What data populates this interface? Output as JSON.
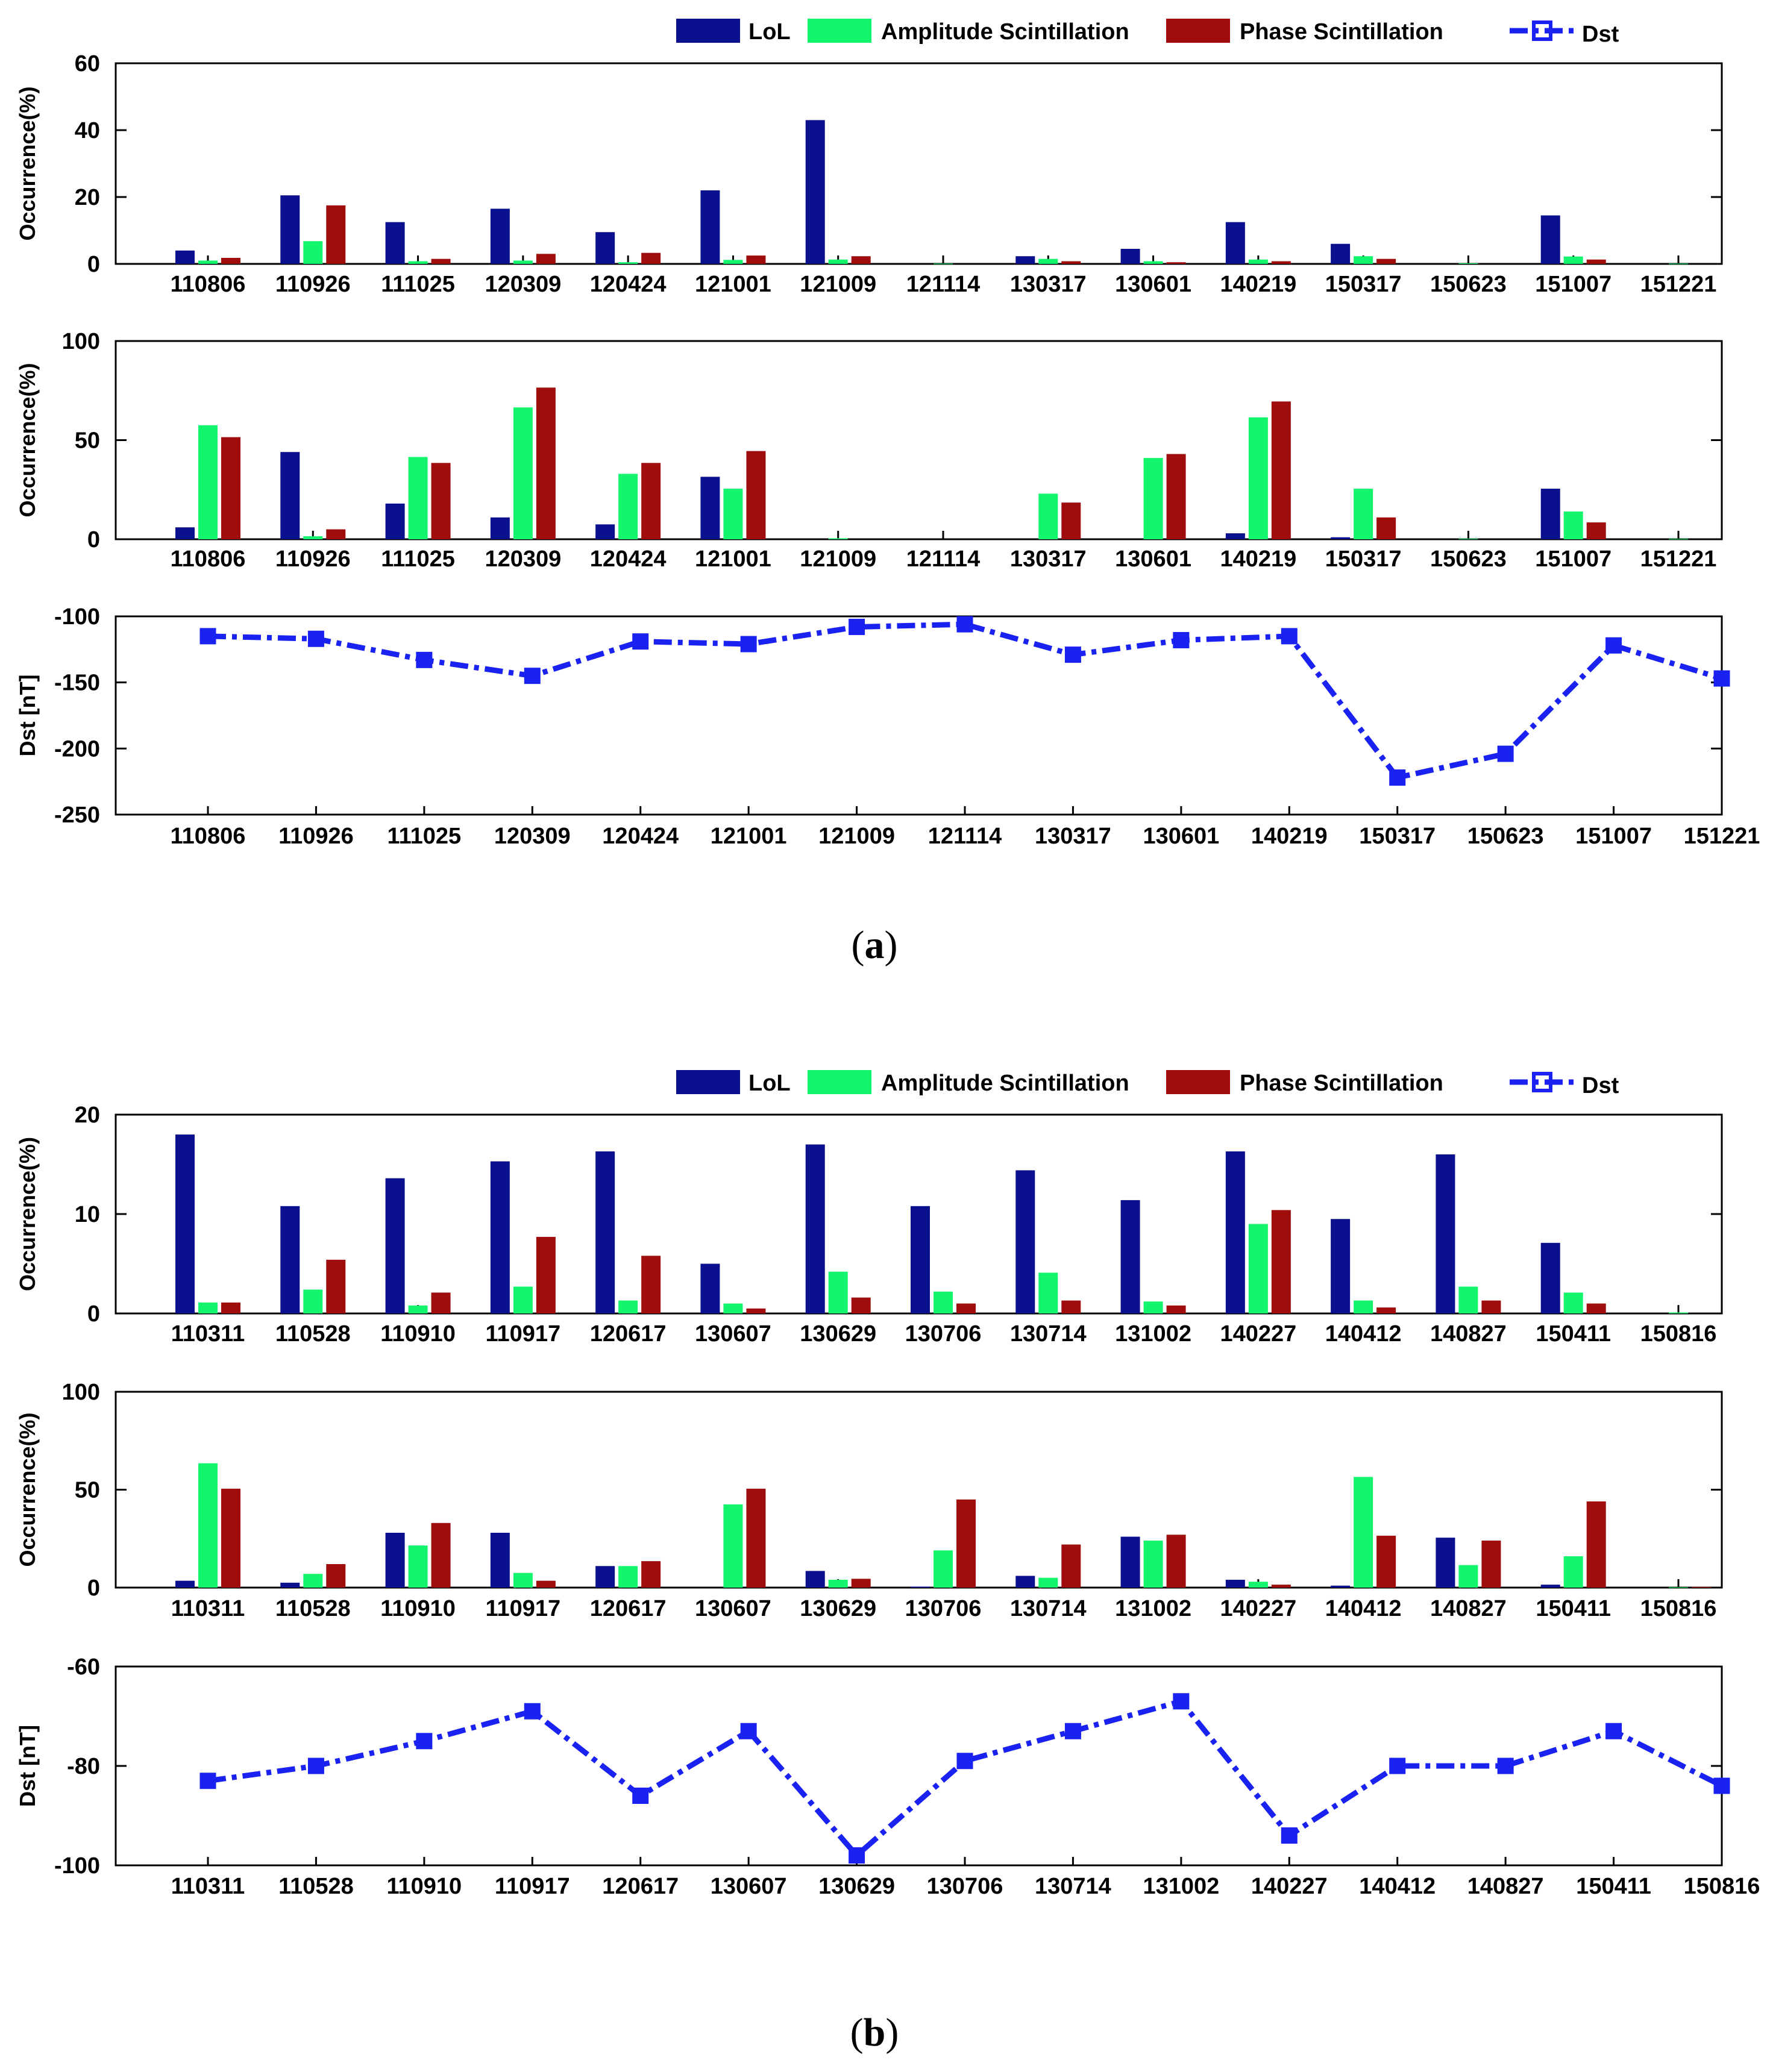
{
  "colors": {
    "LoL": "#0b108e",
    "Amplitude Scintillation": "#12f56c",
    "Phase Scintillation": "#a00d0d",
    "Dst": "#1a22f2"
  },
  "legend_labels": [
    "LoL",
    "Amplitude Scintillation",
    "Phase Scintillation",
    "Dst"
  ],
  "panels": [
    {
      "caption": {
        "open": "(",
        "letter": "a",
        "close": ")"
      },
      "chart_data": [
        {
          "type": "bar",
          "ylabel": "Occurrence(%)",
          "ylim": [
            0,
            60
          ],
          "yticks": [
            0,
            20,
            40,
            60
          ],
          "categories": [
            "110806",
            "110926",
            "111025",
            "120309",
            "120424",
            "121001",
            "121009",
            "121114",
            "130317",
            "130601",
            "140219",
            "150317",
            "150623",
            "151007",
            "151221"
          ],
          "series": [
            {
              "name": "LoL",
              "values": [
                4,
                20.5,
                12.5,
                16.5,
                9.5,
                22,
                43,
                0,
                2.3,
                4.5,
                12.5,
                6,
                0,
                14.5,
                0
              ]
            },
            {
              "name": "Amplitude Scintillation",
              "values": [
                1,
                6.8,
                0.8,
                1,
                0.5,
                1.2,
                1.3,
                0.1,
                1.5,
                0.8,
                1.3,
                2.3,
                0.2,
                2.2,
                0.1
              ]
            },
            {
              "name": "Phase Scintillation",
              "values": [
                1.8,
                17.5,
                1.5,
                3,
                3.3,
                2.5,
                2.3,
                0,
                0.8,
                0.5,
                0.8,
                1.5,
                0,
                1.3,
                0
              ]
            }
          ]
        },
        {
          "type": "bar",
          "ylabel": "Occurrence(%)",
          "ylim": [
            0,
            100
          ],
          "yticks": [
            0,
            50,
            100
          ],
          "categories": [
            "110806",
            "110926",
            "111025",
            "120309",
            "120424",
            "121001",
            "121009",
            "121114",
            "130317",
            "130601",
            "140219",
            "150317",
            "150623",
            "151007",
            "151221"
          ],
          "series": [
            {
              "name": "LoL",
              "values": [
                6,
                44,
                18,
                11,
                7.5,
                31.5,
                0,
                0,
                0,
                0,
                3,
                1,
                0,
                25.5,
                0
              ]
            },
            {
              "name": "Amplitude Scintillation",
              "values": [
                57.5,
                1.5,
                41.5,
                66.5,
                33,
                25.5,
                0.5,
                0,
                23,
                41,
                61.5,
                25.5,
                0.3,
                14,
                0.2
              ]
            },
            {
              "name": "Phase Scintillation",
              "values": [
                51.5,
                5,
                38.5,
                76.5,
                38.5,
                44.5,
                0,
                0,
                18.5,
                43,
                69.5,
                11,
                0,
                8.5,
                0
              ]
            }
          ]
        },
        {
          "type": "line",
          "ylabel": "Dst [nT]",
          "ylim": [
            -250,
            -100
          ],
          "yticks": [
            -250,
            -200,
            -150,
            -100
          ],
          "x": [
            "110806",
            "110926",
            "111025",
            "120309",
            "120424",
            "121001",
            "121009",
            "121114",
            "130317",
            "130601",
            "140219",
            "150317",
            "150623",
            "151007",
            "151221"
          ],
          "series": [
            {
              "name": "Dst",
              "values": [
                -115,
                -117,
                -133,
                -145,
                -119,
                -121,
                -108,
                -106,
                -129,
                -118,
                -115,
                -222,
                -204,
                -122,
                -147
              ]
            }
          ]
        }
      ]
    },
    {
      "caption": {
        "open": "(",
        "letter": "b",
        "close": ")"
      },
      "chart_data": [
        {
          "type": "bar",
          "ylabel": "Occurrence(%)",
          "ylim": [
            0,
            20
          ],
          "yticks": [
            0,
            10,
            20
          ],
          "categories": [
            "110311",
            "110528",
            "110910",
            "110917",
            "120617",
            "130607",
            "130629",
            "130706",
            "130714",
            "131002",
            "140227",
            "140412",
            "140827",
            "150411",
            "150816"
          ],
          "series": [
            {
              "name": "LoL",
              "values": [
                18,
                10.8,
                13.6,
                15.3,
                16.3,
                5,
                17,
                10.8,
                14.4,
                11.4,
                16.3,
                9.5,
                16,
                7.1,
                0
              ]
            },
            {
              "name": "Amplitude Scintillation",
              "values": [
                1.1,
                2.4,
                0.8,
                2.7,
                1.3,
                1,
                4.2,
                2.2,
                4.1,
                1.2,
                9,
                1.3,
                2.7,
                2.1,
                0.1
              ]
            },
            {
              "name": "Phase Scintillation",
              "values": [
                1.1,
                5.4,
                2.1,
                7.7,
                5.8,
                0.5,
                1.6,
                1,
                1.3,
                0.8,
                10.4,
                0.6,
                1.3,
                1,
                0
              ]
            }
          ]
        },
        {
          "type": "bar",
          "ylabel": "Occurrence(%)",
          "ylim": [
            0,
            100
          ],
          "yticks": [
            0,
            50,
            100
          ],
          "categories": [
            "110311",
            "110528",
            "110910",
            "110917",
            "120617",
            "130607",
            "130629",
            "130706",
            "130714",
            "131002",
            "140227",
            "140412",
            "140827",
            "150411",
            "150816"
          ],
          "series": [
            {
              "name": "LoL",
              "values": [
                3.5,
                2.5,
                28,
                28,
                11,
                0,
                8.5,
                0.5,
                6,
                26,
                4,
                1,
                25.5,
                1.5,
                0
              ]
            },
            {
              "name": "Amplitude Scintillation",
              "values": [
                63.5,
                7,
                21.5,
                7.5,
                11,
                42.5,
                4,
                19,
                5,
                24,
                3,
                56.5,
                11.5,
                16,
                0.2
              ]
            },
            {
              "name": "Phase Scintillation",
              "values": [
                50.5,
                12,
                33,
                3.5,
                13.5,
                50.5,
                4.5,
                45,
                22,
                27,
                1.5,
                26.5,
                24,
                44,
                0.3
              ]
            }
          ]
        },
        {
          "type": "line",
          "ylabel": "Dst [nT]",
          "ylim": [
            -100,
            -60
          ],
          "yticks": [
            -100,
            -80,
            -60
          ],
          "x": [
            "110311",
            "110528",
            "110910",
            "110917",
            "120617",
            "130607",
            "130629",
            "130706",
            "130714",
            "131002",
            "140227",
            "140412",
            "140827",
            "150411",
            "150816"
          ],
          "series": [
            {
              "name": "Dst",
              "values": [
                -83,
                -80,
                -75,
                -69,
                -86,
                -73,
                -98,
                -79,
                -73,
                -67,
                -94,
                -80,
                -80,
                -73,
                -84
              ]
            }
          ]
        }
      ]
    }
  ]
}
